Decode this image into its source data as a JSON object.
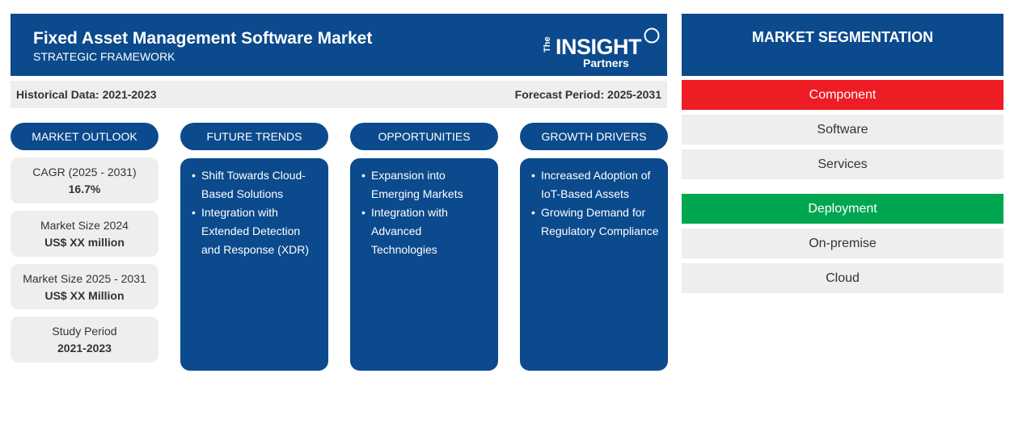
{
  "header": {
    "title": "Fixed Asset Management Software Market",
    "subtitle": "STRATEGIC FRAMEWORK",
    "logo": {
      "the": "The",
      "insight": "INSIGHT",
      "partners": "Partners"
    }
  },
  "periods": {
    "historical": "Historical Data: 2021-2023",
    "forecast": "Forecast Period: 2025-2031"
  },
  "columns": {
    "outlook": "MARKET OUTLOOK",
    "trends": "FUTURE TRENDS",
    "opportunities": "OPPORTUNITIES",
    "drivers": "GROWTH DRIVERS"
  },
  "outlook": [
    {
      "label": "CAGR (2025 - 2031)",
      "value": "16.7%"
    },
    {
      "label": "Market Size 2024",
      "value": "US$ XX million"
    },
    {
      "label": "Market Size 2025 - 2031",
      "value": "US$ XX Million"
    },
    {
      "label": "Study Period",
      "value": "2021-2023"
    }
  ],
  "trends": [
    "Shift Towards Cloud-Based Solutions",
    "Integration with Extended Detection and Response (XDR)"
  ],
  "opportunities": [
    "Expansion into Emerging Markets",
    "Integration with Advanced Technologies"
  ],
  "drivers": [
    "Increased Adoption of IoT-Based Assets",
    "Growing Demand for Regulatory Compliance"
  ],
  "segmentation": {
    "title": "MARKET SEGMENTATION",
    "groups": [
      {
        "name": "Component",
        "color": "#ee1c25",
        "items": [
          "Software",
          "Services"
        ]
      },
      {
        "name": "Deployment",
        "color": "#00a650",
        "items": [
          "On-premise",
          "Cloud"
        ]
      }
    ]
  }
}
